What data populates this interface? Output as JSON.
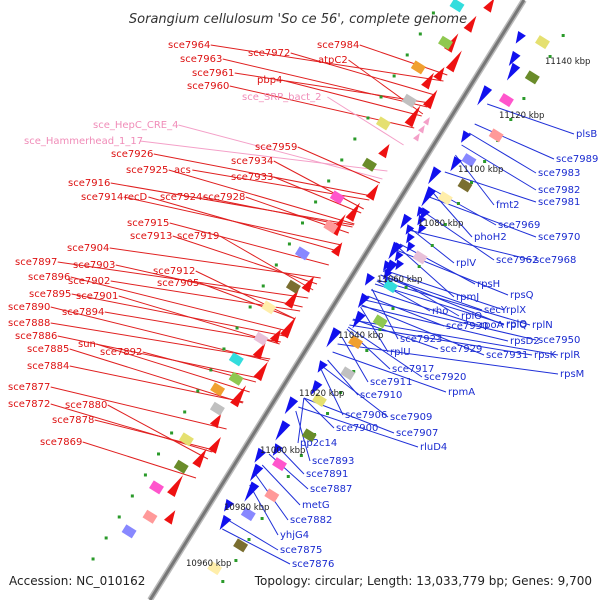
{
  "title": "Sorangium cellulosum 'So ce 56', complete genome",
  "footer": {
    "accession": "Accession: NC_010162",
    "summary": "Topology: circular; Length: 13,033,779 bp; Genes: 9,700"
  },
  "colors": {
    "forward": "#ee1111",
    "reverse": "#1111ee",
    "rna": "#f4a0c8",
    "backbone": "#888888",
    "ticks": "#2a9a2a"
  },
  "kbp_ticks": [
    "11140 kbp",
    "11120 kbp",
    "11100 kbp",
    "11080 kbp",
    "11060 kbp",
    "11040 kbp",
    "11020 kbp",
    "11000 kbp",
    "10980 kbp",
    "10960 kbp"
  ],
  "labels_left": [
    {
      "t": "sce7984",
      "c": "r"
    },
    {
      "t": "sce7964",
      "c": "r"
    },
    {
      "t": "sce7972",
      "c": "r"
    },
    {
      "t": "sce7963",
      "c": "r"
    },
    {
      "t": "atpC2",
      "c": "r"
    },
    {
      "t": "sce7961",
      "c": "r"
    },
    {
      "t": "pbp4",
      "c": "r"
    },
    {
      "t": "sce7960",
      "c": "r"
    },
    {
      "t": "sce_SRP_bact_2",
      "c": "p"
    },
    {
      "t": "sce_HepC_CRE_4",
      "c": "p"
    },
    {
      "t": "sce_Hammerhead_1_17",
      "c": "p"
    },
    {
      "t": "sce7959",
      "c": "r"
    },
    {
      "t": "sce7926",
      "c": "r"
    },
    {
      "t": "sce7934",
      "c": "r"
    },
    {
      "t": "sce7925",
      "c": "r"
    },
    {
      "t": "acs",
      "c": "r"
    },
    {
      "t": "sce7933",
      "c": "r"
    },
    {
      "t": "sce7916",
      "c": "r"
    },
    {
      "t": "sce7914",
      "c": "r"
    },
    {
      "t": "recD",
      "c": "r"
    },
    {
      "t": "sce7924",
      "c": "r"
    },
    {
      "t": "sce7928",
      "c": "r"
    },
    {
      "t": "sce7915",
      "c": "r"
    },
    {
      "t": "sce7913",
      "c": "r"
    },
    {
      "t": "sce7919",
      "c": "r"
    },
    {
      "t": "sce7904",
      "c": "r"
    },
    {
      "t": "sce7897",
      "c": "r"
    },
    {
      "t": "sce7903",
      "c": "r"
    },
    {
      "t": "sce7912",
      "c": "r"
    },
    {
      "t": "sce7896",
      "c": "r"
    },
    {
      "t": "sce7902",
      "c": "r"
    },
    {
      "t": "sce7905",
      "c": "r"
    },
    {
      "t": "sce7895",
      "c": "r"
    },
    {
      "t": "sce7901",
      "c": "r"
    },
    {
      "t": "sce7890",
      "c": "r"
    },
    {
      "t": "sce7894",
      "c": "r"
    },
    {
      "t": "sce7888",
      "c": "r"
    },
    {
      "t": "sce7886",
      "c": "r"
    },
    {
      "t": "sun",
      "c": "r"
    },
    {
      "t": "sce7885",
      "c": "r"
    },
    {
      "t": "sce7892",
      "c": "r"
    },
    {
      "t": "sce7884",
      "c": "r"
    },
    {
      "t": "sce7877",
      "c": "r"
    },
    {
      "t": "sce7872",
      "c": "r"
    },
    {
      "t": "sce7880",
      "c": "r"
    },
    {
      "t": "sce7878",
      "c": "r"
    },
    {
      "t": "sce7869",
      "c": "r"
    }
  ],
  "labels_right": [
    "plsB",
    "sce7989",
    "sce7983",
    "sce7982",
    "fmt2",
    "sce7981",
    "sce7969",
    "sce7970",
    "phoH2",
    "sce7962",
    "sce7968",
    "rplV",
    "rpsH",
    "rpsQ",
    "rpmJ",
    "rho",
    "secY",
    "rplX",
    "rplO",
    "rplQ",
    "sce7930",
    "rpoA",
    "rplO",
    "rplN",
    "sce7923",
    "sce7929",
    "rpsD2",
    "sce7950",
    "rplU",
    "sce7931",
    "rpsK",
    "rplR",
    "sce7917",
    "sce7911",
    "sce7920",
    "rpsM",
    "sce7910",
    "rpmA",
    "sce7906",
    "sce7909",
    "sce7900",
    "sce7907",
    "rluD4",
    "pp2c14",
    "sce7893",
    "sce7891",
    "sce7887",
    "metG",
    "sce7882",
    "yhjG4",
    "sce7875",
    "sce7876"
  ]
}
